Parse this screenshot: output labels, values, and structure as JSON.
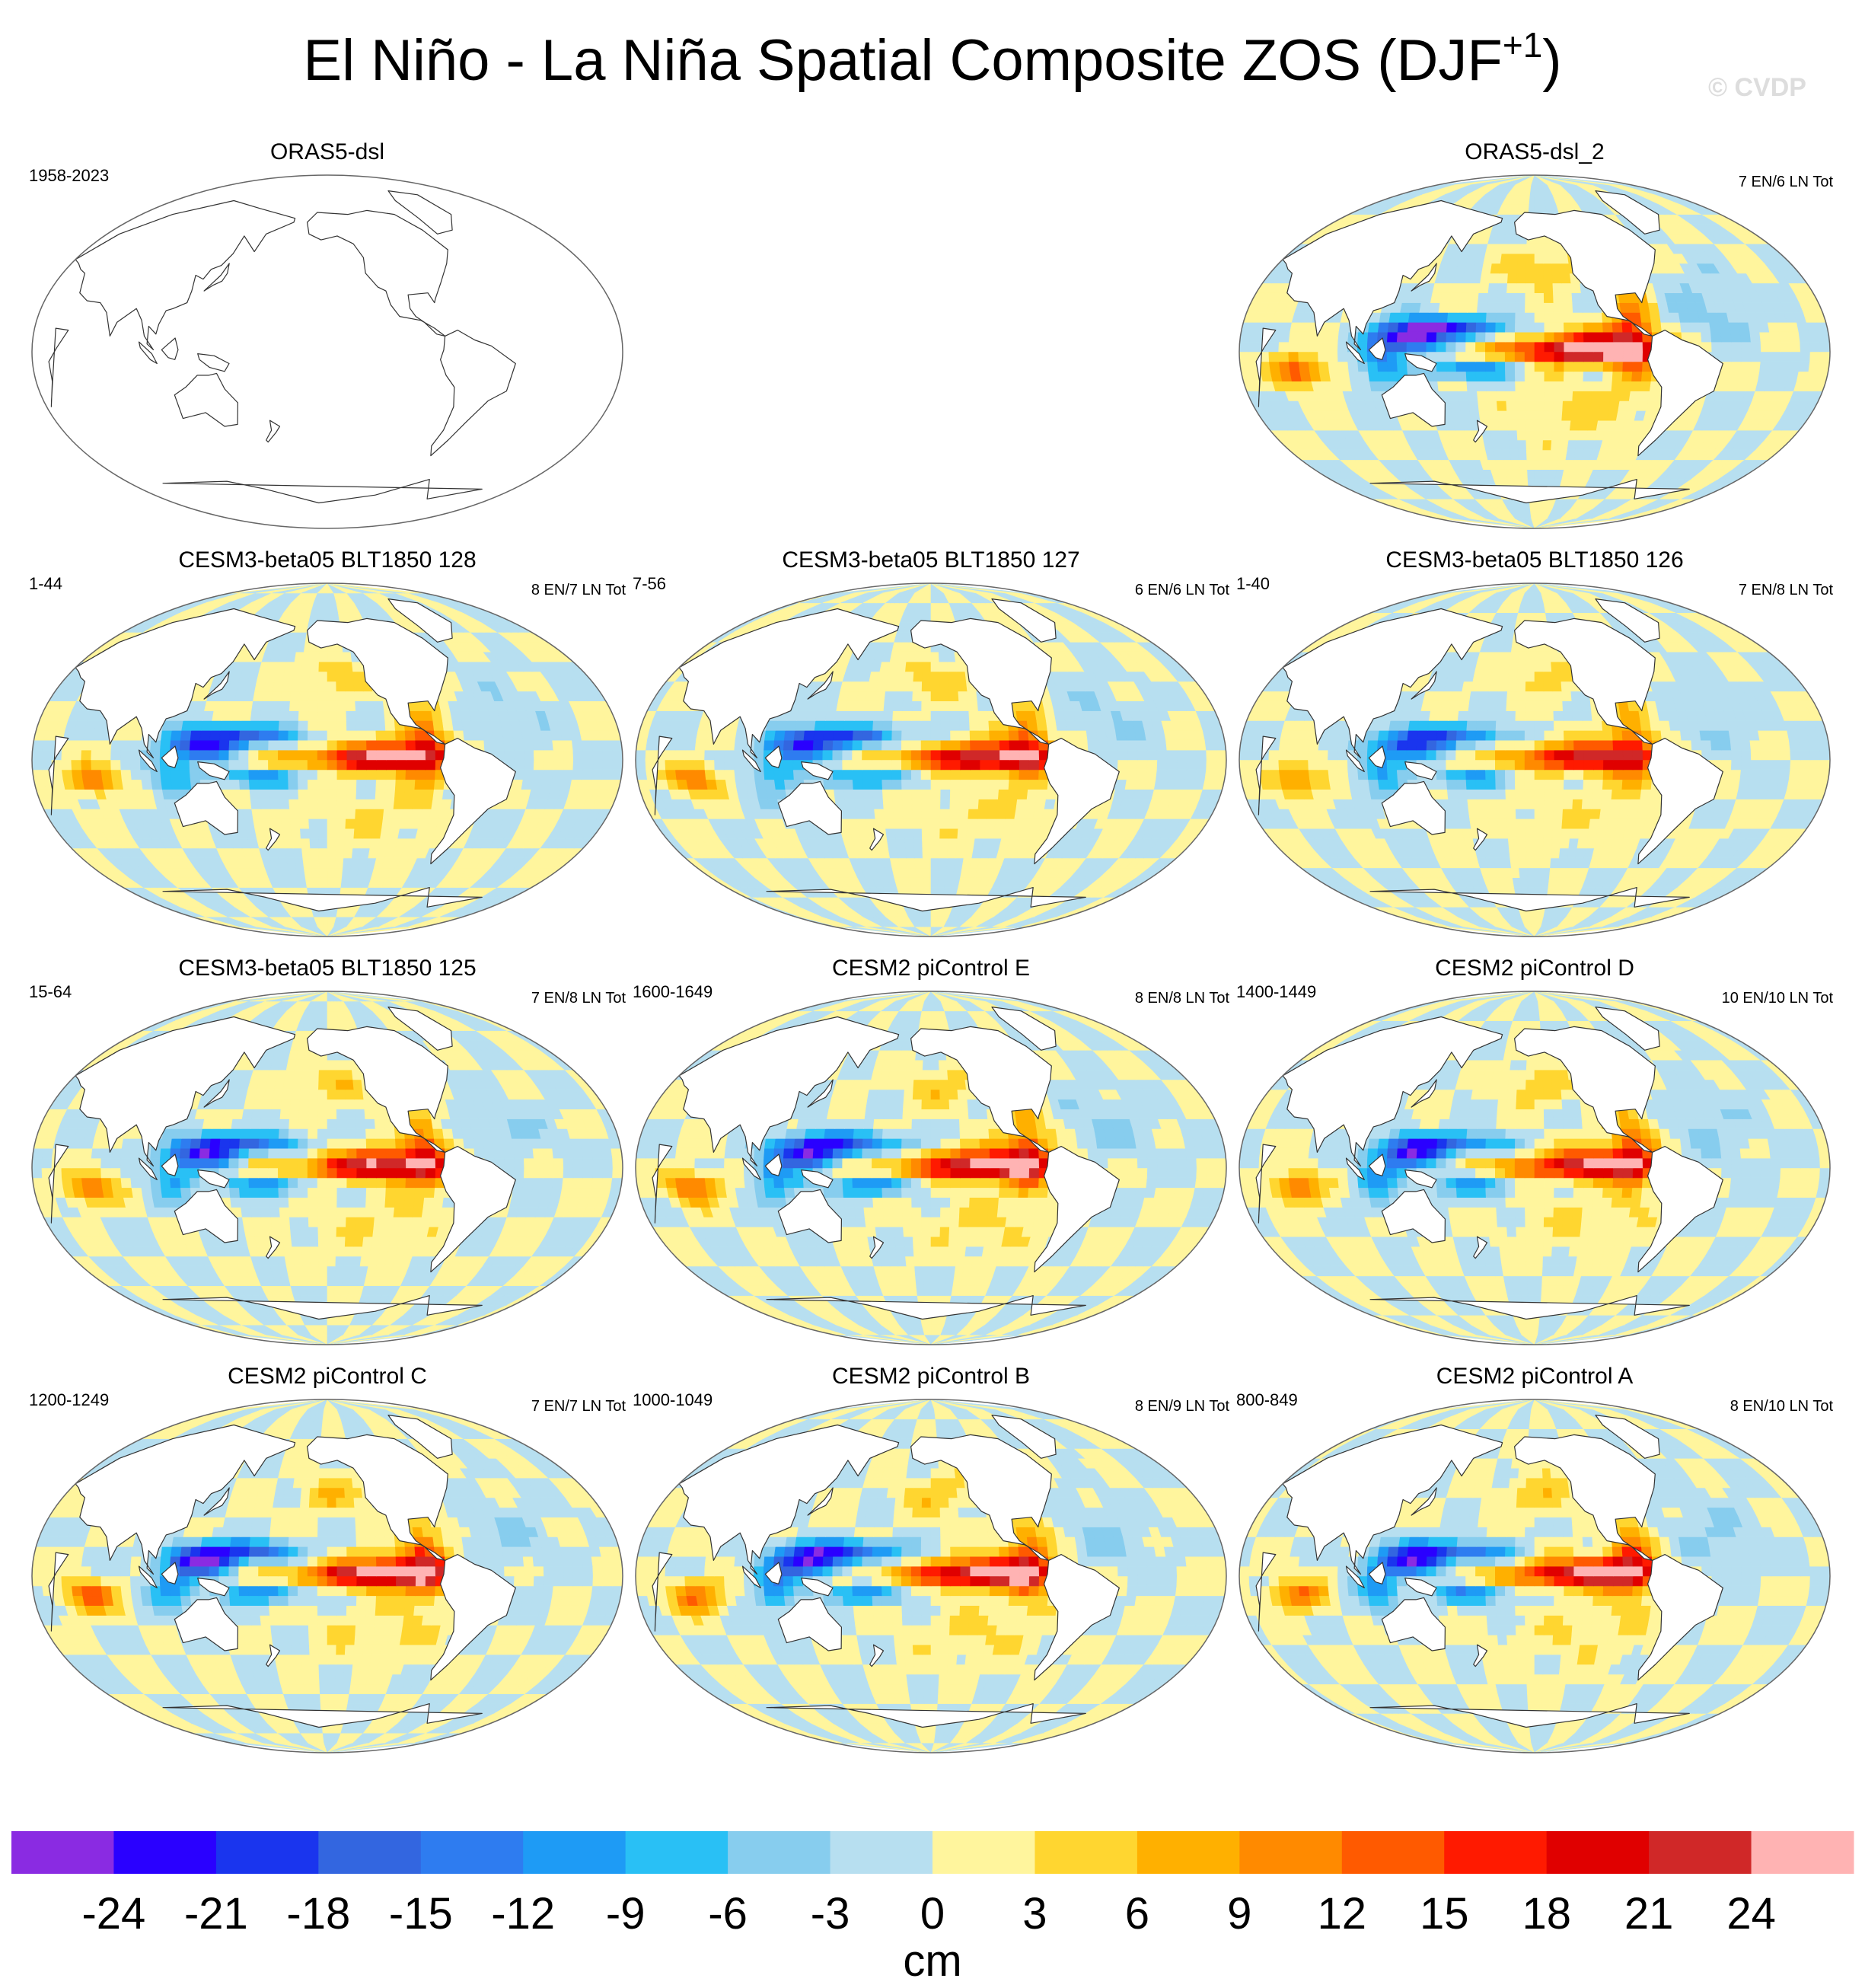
{
  "figure": {
    "title": "El Niño - La Niña Spatial Composite ZOS (DJF",
    "title_superscript": "+1",
    "title_close": ")",
    "copyright": "© CVDP"
  },
  "chart_data": {
    "type": "heatmap",
    "variable": "ZOS",
    "units": "cm",
    "colorbar": {
      "label": "cm",
      "ticks": [
        -24,
        -21,
        -18,
        -15,
        -12,
        -9,
        -6,
        -3,
        0,
        3,
        6,
        9,
        12,
        15,
        18,
        21,
        24
      ],
      "tick_labels": [
        "-24",
        "-21",
        "-18",
        "-15",
        "-12",
        "-9",
        "-6",
        "-3",
        "0",
        "3",
        "6",
        "9",
        "12",
        "15",
        "18",
        "21",
        "24"
      ],
      "colors": [
        "#8a2be2",
        "#2a00ff",
        "#1a35ee",
        "#3366e0",
        "#2e7cf0",
        "#1e9bf5",
        "#29c0f5",
        "#87cdee",
        "#b7dff0",
        "#fff59d",
        "#ffd630",
        "#ffb000",
        "#ff8a00",
        "#ff5a00",
        "#ff1a00",
        "#e00000",
        "#d02828",
        "#ffb3b3"
      ]
    },
    "panels": [
      {
        "title": "ORAS5-dsl",
        "years": "1958-2023",
        "counts": "",
        "filled": false,
        "intensity": 0
      },
      {
        "title": "",
        "years": "",
        "counts": "",
        "empty": true
      },
      {
        "title": "ORAS5-dsl_2",
        "years": "",
        "counts": "7 EN/6 LN Tot",
        "filled": true,
        "intensity": 1.25
      },
      {
        "title": "CESM3-beta05 BLT1850 128",
        "years": "1-44",
        "counts": "8 EN/7 LN Tot",
        "filled": true,
        "intensity": 1.0
      },
      {
        "title": "CESM3-beta05 BLT1850 127",
        "years": "7-56",
        "counts": "6 EN/6 LN Tot",
        "filled": true,
        "intensity": 1.0
      },
      {
        "title": "CESM3-beta05 BLT1850 126",
        "years": "1-40",
        "counts": "7 EN/8 LN Tot",
        "filled": true,
        "intensity": 0.9
      },
      {
        "title": "CESM3-beta05 BLT1850 125",
        "years": "15-64",
        "counts": "7 EN/8 LN Tot",
        "filled": true,
        "intensity": 1.0
      },
      {
        "title": "CESM2 piControl E",
        "years": "1600-1649",
        "counts": "8 EN/8 LN Tot",
        "filled": true,
        "intensity": 1.1
      },
      {
        "title": "CESM2 piControl D",
        "years": "1400-1449",
        "counts": "10 EN/10 LN Tot",
        "filled": true,
        "intensity": 1.0
      },
      {
        "title": "CESM2 piControl C",
        "years": "1200-1249",
        "counts": "7 EN/7 LN Tot",
        "filled": true,
        "intensity": 1.1
      },
      {
        "title": "CESM2 piControl B",
        "years": "1000-1049",
        "counts": "8 EN/9 LN Tot",
        "filled": true,
        "intensity": 1.1
      },
      {
        "title": "CESM2 piControl A",
        "years": "800-849",
        "counts": "8 EN/10 LN Tot",
        "filled": true,
        "intensity": 1.05
      }
    ]
  }
}
